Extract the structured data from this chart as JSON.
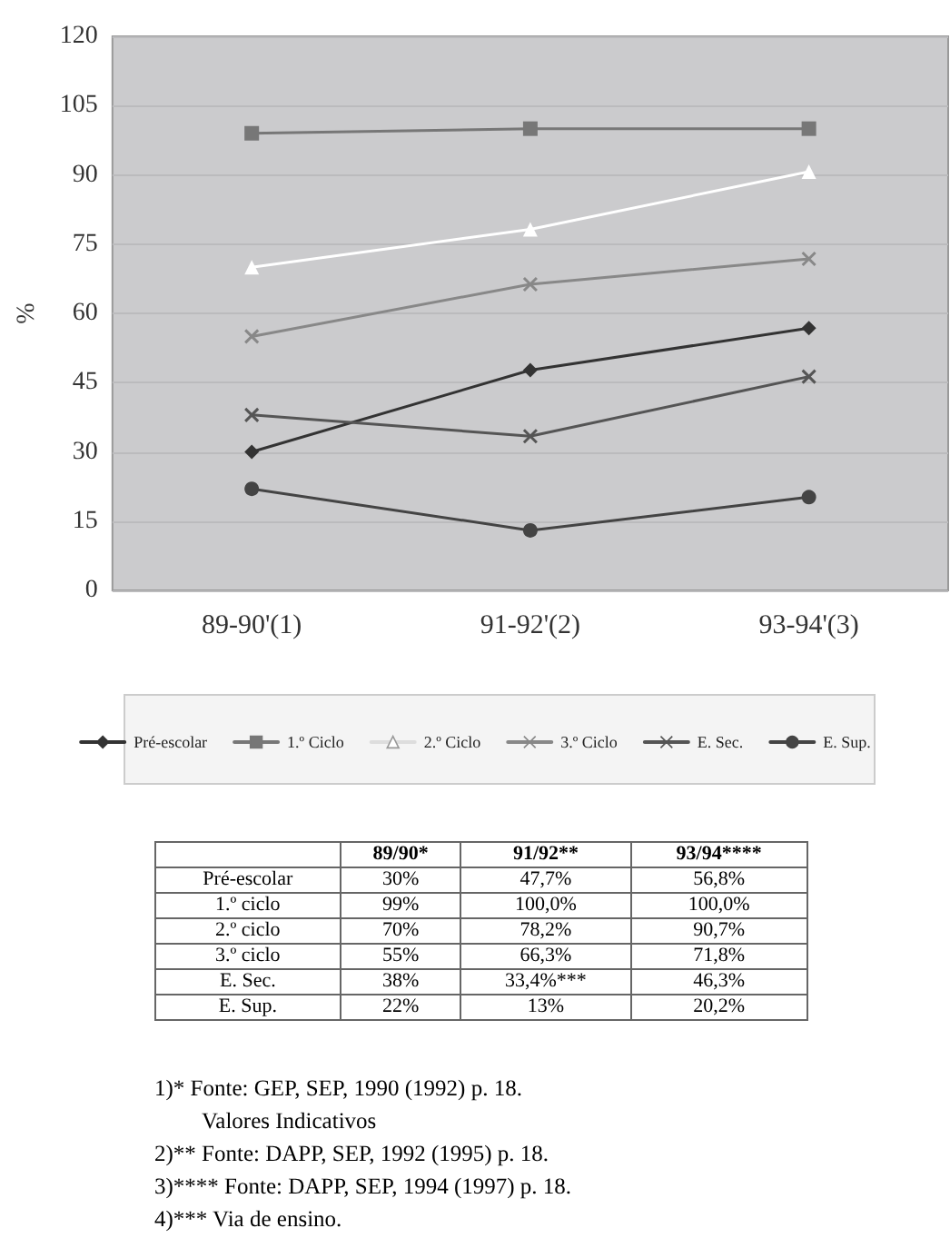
{
  "chart_data": [
    {
      "type": "line",
      "ylabel": "%",
      "categories": [
        "89-90'(1)",
        "91-92'(2)",
        "93-94'(3)"
      ],
      "ylim": [
        0,
        120
      ],
      "yticks": [
        0,
        15,
        30,
        45,
        60,
        75,
        90,
        105,
        120
      ],
      "grid": "y",
      "legend": "bottom",
      "line_style": "solid",
      "series": [
        {
          "name": "Pré-escolar",
          "color": "#333333",
          "marker": "diamond",
          "values": [
            30,
            47.7,
            56.8
          ]
        },
        {
          "name": "1.º Ciclo",
          "color": "#777777",
          "marker": "square",
          "values": [
            99,
            100,
            100
          ]
        },
        {
          "name": "2.º Ciclo",
          "color": "#ffffff",
          "marker": "triangle",
          "values": [
            70,
            78.2,
            90.7
          ]
        },
        {
          "name": "3.º Ciclo",
          "color": "#888888",
          "marker": "cross",
          "values": [
            55,
            66.3,
            71.8
          ]
        },
        {
          "name": "E. Sec.",
          "color": "#555555",
          "marker": "cross",
          "values": [
            38,
            33.4,
            46.3
          ]
        },
        {
          "name": "E. Sup.",
          "color": "#444444",
          "marker": "circle",
          "values": [
            22,
            13,
            20.2
          ]
        }
      ]
    },
    {
      "type": "other",
      "categories": [
        "89/90*",
        "91/92**",
        "93/94****"
      ],
      "y_categories": [
        "Pré-escolar",
        "1.º ciclo",
        "2.º ciclo",
        "3.º ciclo",
        "E. Sec.",
        "E. Sup."
      ],
      "cell_labels": [
        [
          "30%",
          "47,7%",
          "56,8%"
        ],
        [
          "99%",
          "100,0%",
          "100,0%"
        ],
        [
          "70%",
          "78,2%",
          "90,7%"
        ],
        [
          "55%",
          "66,3%",
          "71,8%"
        ],
        [
          "38%",
          "33,4%***",
          "46,3%"
        ],
        [
          "22%",
          "13%",
          "20,2%"
        ]
      ],
      "annotations": [
        "1)* Fonte: GEP, SEP, 1990 (1992) p. 18.",
        "Valores Indicativos",
        "2)** Fonte: DAPP, SEP, 1992 (1995) p. 18.",
        "3)**** Fonte: DAPP, SEP, 1994 (1997) p. 18.",
        "4)*** Via de ensino."
      ]
    }
  ]
}
